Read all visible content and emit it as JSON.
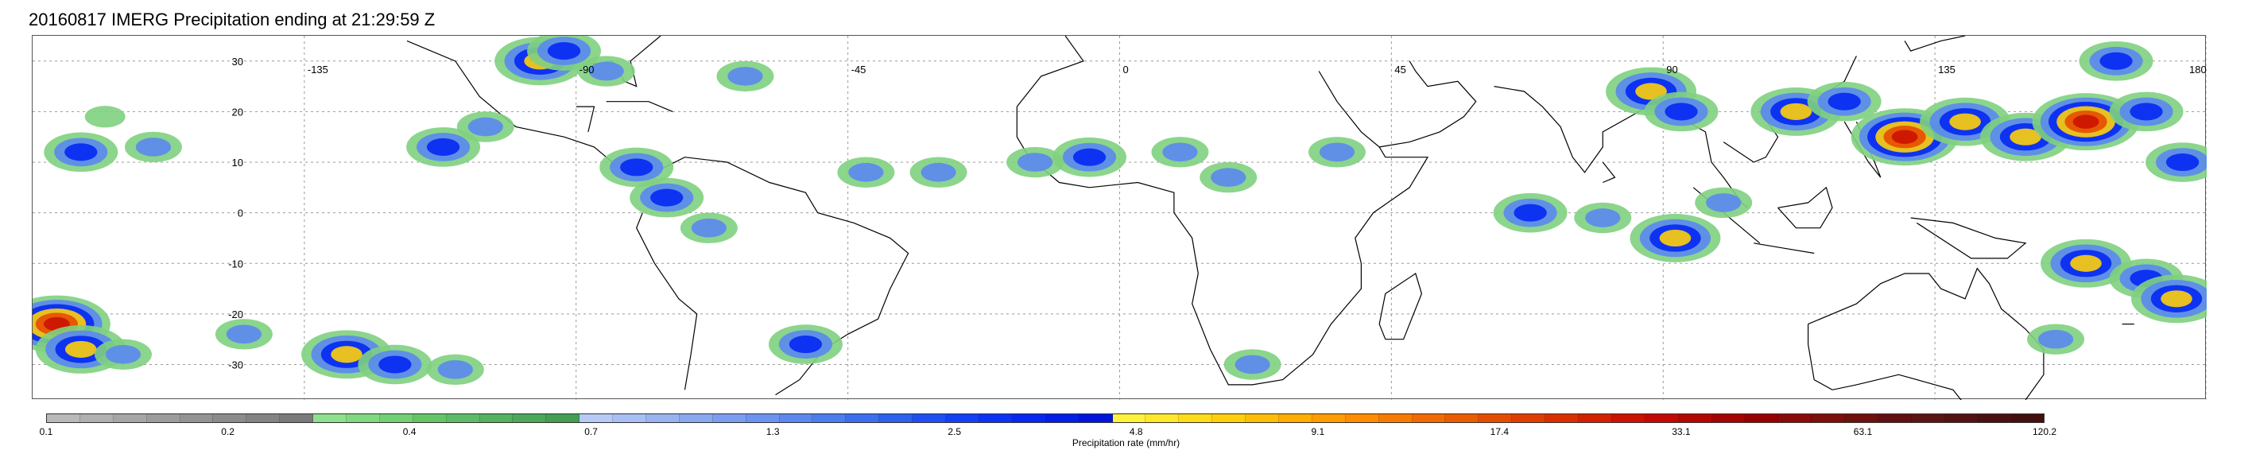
{
  "title": "20160817 IMERG Precipitation ending at 21:29:59 Z",
  "map": {
    "lon_labels": [
      "-135",
      "-90",
      "-45",
      "0",
      "45",
      "90",
      "135",
      "180"
    ],
    "lon_values": [
      -135,
      -90,
      -45,
      0,
      45,
      90,
      135,
      180
    ],
    "lat_labels": [
      "30",
      "20",
      "10",
      "0",
      "-10",
      "-20",
      "-30"
    ],
    "lat_values": [
      30,
      20,
      10,
      0,
      -10,
      -20,
      -30
    ],
    "lon_range": [
      -180,
      180
    ],
    "lat_range": [
      -37,
      35
    ],
    "grid": true,
    "coastline_color": "#000000",
    "grid_color": "#999999"
  },
  "colorbar": {
    "label": "Precipitation rate (mm/hr)",
    "tick_labels": [
      "0.1",
      "0.2",
      "0.4",
      "0.7",
      "1.3",
      "2.5",
      "4.8",
      "9.1",
      "17.4",
      "33.1",
      "63.1",
      "120.2"
    ],
    "segments_per_tick": 4,
    "colors": [
      "#b9b9b9",
      "#b0b0b0",
      "#a6a6a6",
      "#9c9c9c",
      "#939393",
      "#8b8b8b",
      "#838383",
      "#7a7a7a",
      "#8de08d",
      "#80d880",
      "#72cf72",
      "#64c564",
      "#5cbb66",
      "#54b15e",
      "#4ca758",
      "#449d50",
      "#b7c9f7",
      "#a8bff4",
      "#99b3f1",
      "#8aa8ee",
      "#7a9df0",
      "#6b93f0",
      "#5a88ef",
      "#4a7ded",
      "#3b6fef",
      "#2d5ff0",
      "#1f4ff2",
      "#1140f5",
      "#0a33f6",
      "#0628f2",
      "#031ee8",
      "#0014dc",
      "#fff23c",
      "#ffe82a",
      "#ffdc18",
      "#ffcf0a",
      "#ffbe05",
      "#ffad03",
      "#ff9c02",
      "#ff8b01",
      "#f97a00",
      "#f26a00",
      "#ec5b00",
      "#e54c00",
      "#e03d00",
      "#da2e00",
      "#d32000",
      "#cc1200",
      "#c20a00",
      "#b40600",
      "#a60300",
      "#980000",
      "#8a0a08",
      "#7c0e0c",
      "#6e100e",
      "#601010",
      "#5a1414",
      "#521212",
      "#4a1010",
      "#420e0e"
    ]
  },
  "precip_clusters": [
    {
      "lon": -172,
      "lat": 12,
      "level": 3
    },
    {
      "lon": -160,
      "lat": 13,
      "level": 2
    },
    {
      "lon": -168,
      "lat": 19,
      "level": 1
    },
    {
      "lon": -176,
      "lat": -22,
      "level": 5
    },
    {
      "lon": -172,
      "lat": -27,
      "level": 4
    },
    {
      "lon": -165,
      "lat": -28,
      "level": 2
    },
    {
      "lon": -145,
      "lat": -24,
      "level": 2
    },
    {
      "lon": -128,
      "lat": -28,
      "level": 4
    },
    {
      "lon": -120,
      "lat": -30,
      "level": 3
    },
    {
      "lon": -110,
      "lat": -31,
      "level": 2
    },
    {
      "lon": -112,
      "lat": 13,
      "level": 3
    },
    {
      "lon": -105,
      "lat": 17,
      "level": 2
    },
    {
      "lon": -96,
      "lat": 30,
      "level": 4
    },
    {
      "lon": -92,
      "lat": 32,
      "level": 3
    },
    {
      "lon": -85,
      "lat": 28,
      "level": 2
    },
    {
      "lon": -80,
      "lat": 9,
      "level": 3
    },
    {
      "lon": -75,
      "lat": 3,
      "level": 3
    },
    {
      "lon": -68,
      "lat": -3,
      "level": 2
    },
    {
      "lon": -62,
      "lat": 27,
      "level": 2
    },
    {
      "lon": -52,
      "lat": -26,
      "level": 3
    },
    {
      "lon": -42,
      "lat": 8,
      "level": 2
    },
    {
      "lon": -30,
      "lat": 8,
      "level": 2
    },
    {
      "lon": -14,
      "lat": 10,
      "level": 2
    },
    {
      "lon": -5,
      "lat": 11,
      "level": 3
    },
    {
      "lon": 10,
      "lat": 12,
      "level": 2
    },
    {
      "lon": 18,
      "lat": 7,
      "level": 2
    },
    {
      "lon": 22,
      "lat": -30,
      "level": 2
    },
    {
      "lon": 36,
      "lat": 12,
      "level": 2
    },
    {
      "lon": 68,
      "lat": 0,
      "level": 3
    },
    {
      "lon": 80,
      "lat": -1,
      "level": 2
    },
    {
      "lon": 88,
      "lat": 24,
      "level": 4
    },
    {
      "lon": 93,
      "lat": 20,
      "level": 3
    },
    {
      "lon": 92,
      "lat": -5,
      "level": 4
    },
    {
      "lon": 100,
      "lat": 2,
      "level": 2
    },
    {
      "lon": 112,
      "lat": 20,
      "level": 4
    },
    {
      "lon": 120,
      "lat": 22,
      "level": 3
    },
    {
      "lon": 130,
      "lat": 15,
      "level": 5
    },
    {
      "lon": 140,
      "lat": 18,
      "level": 4
    },
    {
      "lon": 150,
      "lat": 15,
      "level": 4
    },
    {
      "lon": 160,
      "lat": 18,
      "level": 5
    },
    {
      "lon": 170,
      "lat": 20,
      "level": 3
    },
    {
      "lon": 176,
      "lat": 10,
      "level": 3
    },
    {
      "lon": 160,
      "lat": -10,
      "level": 4
    },
    {
      "lon": 170,
      "lat": -13,
      "level": 3
    },
    {
      "lon": 175,
      "lat": -17,
      "level": 4
    },
    {
      "lon": 155,
      "lat": -25,
      "level": 2
    },
    {
      "lon": 165,
      "lat": 30,
      "level": 3
    }
  ]
}
